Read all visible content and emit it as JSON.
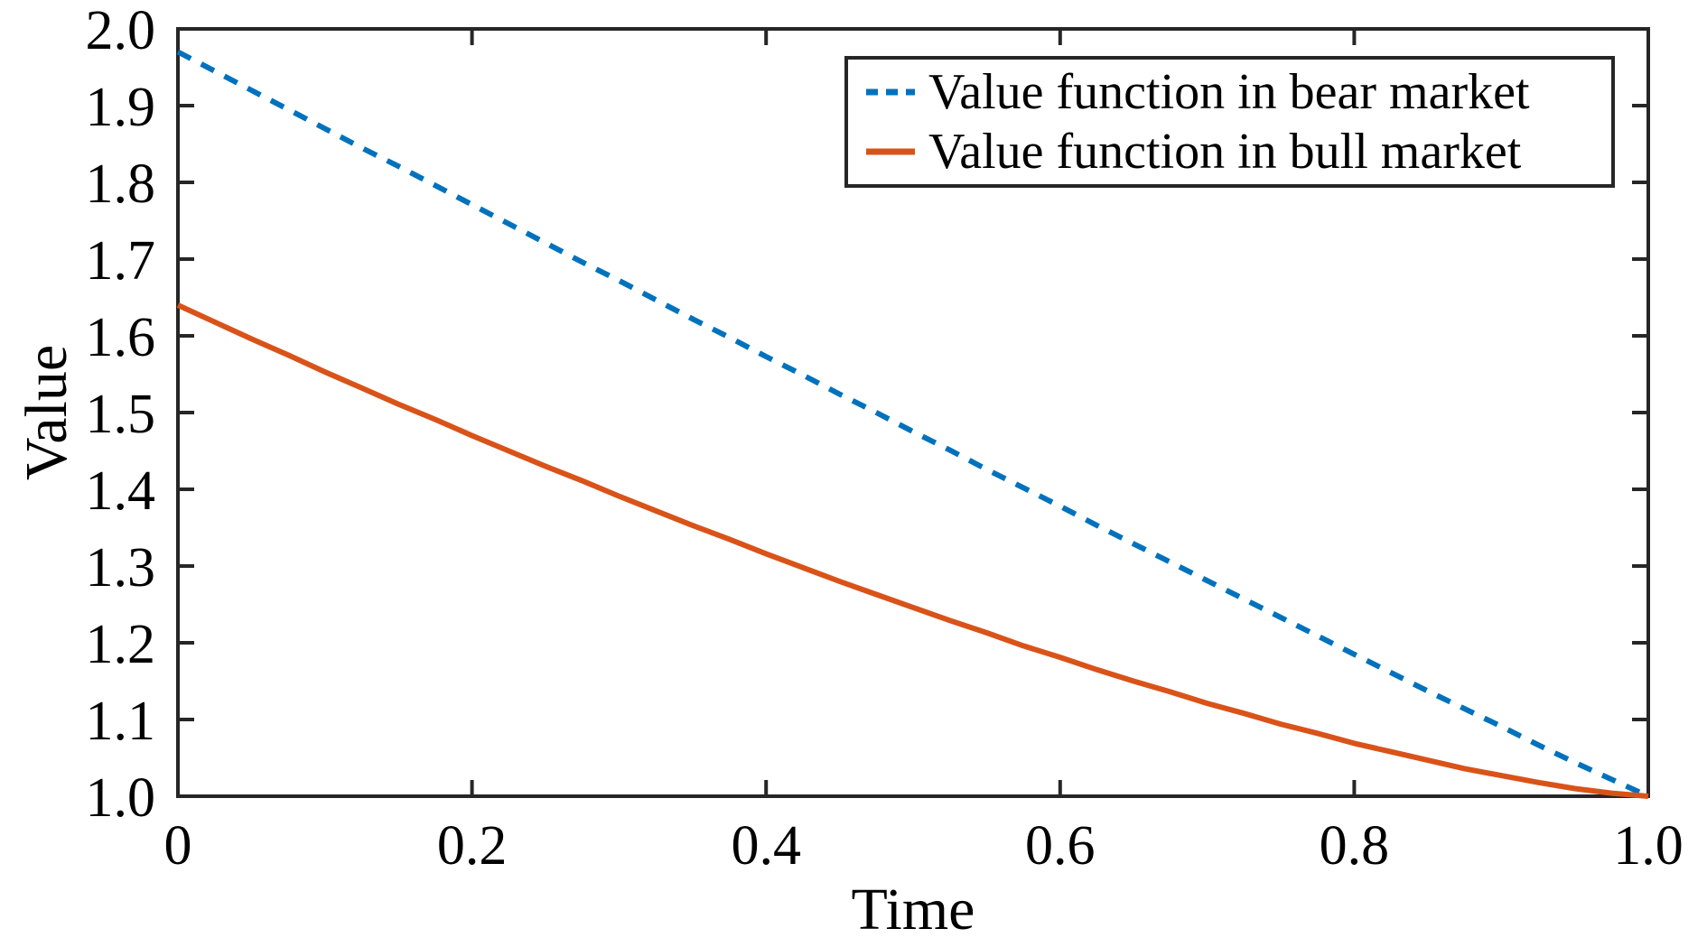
{
  "chart_data": {
    "type": "line",
    "title": "",
    "xlabel": "Time",
    "ylabel": "Value",
    "xlim": [
      0,
      1
    ],
    "ylim": [
      1.0,
      2.0
    ],
    "grid": false,
    "legend_position": "top-right",
    "x_ticks": [
      0,
      0.2,
      0.4,
      0.6,
      0.8,
      1.0
    ],
    "x_tick_labels": [
      "0",
      "0.2",
      "0.4",
      "0.6",
      "0.8",
      "1.0"
    ],
    "y_ticks": [
      1.0,
      1.1,
      1.2,
      1.3,
      1.4,
      1.5,
      1.6,
      1.7,
      1.8,
      1.9,
      2.0
    ],
    "y_tick_labels": [
      "1.0",
      "1.1",
      "1.2",
      "1.3",
      "1.4",
      "1.5",
      "1.6",
      "1.7",
      "1.8",
      "1.9",
      "2.0"
    ],
    "x": [
      0,
      0.025,
      0.05,
      0.075,
      0.1,
      0.125,
      0.15,
      0.175,
      0.2,
      0.225,
      0.25,
      0.275,
      0.3,
      0.325,
      0.35,
      0.375,
      0.4,
      0.425,
      0.45,
      0.475,
      0.5,
      0.525,
      0.55,
      0.575,
      0.6,
      0.625,
      0.65,
      0.675,
      0.7,
      0.725,
      0.75,
      0.775,
      0.8,
      0.825,
      0.85,
      0.875,
      0.9,
      0.925,
      0.95,
      0.975,
      1.0
    ],
    "series": [
      {
        "name": "Value function in bear market",
        "color": "#0072BD",
        "style": "dashed",
        "start_value": 1.97,
        "end_value": 1.0,
        "values": [
          1.97,
          1.945,
          1.92,
          1.895,
          1.87,
          1.845,
          1.821,
          1.796,
          1.771,
          1.746,
          1.721,
          1.696,
          1.672,
          1.647,
          1.622,
          1.598,
          1.573,
          1.549,
          1.524,
          1.5,
          1.475,
          1.451,
          1.426,
          1.402,
          1.378,
          1.353,
          1.329,
          1.305,
          1.281,
          1.257,
          1.233,
          1.209,
          1.185,
          1.161,
          1.137,
          1.114,
          1.091,
          1.067,
          1.044,
          1.022,
          1.0
        ]
      },
      {
        "name": "Value function in bull market",
        "color": "#D95319",
        "style": "solid",
        "start_value": 1.64,
        "end_value": 1.0,
        "values": [
          1.64,
          1.618,
          1.596,
          1.575,
          1.553,
          1.532,
          1.511,
          1.491,
          1.47,
          1.45,
          1.43,
          1.411,
          1.391,
          1.372,
          1.353,
          1.335,
          1.316,
          1.298,
          1.28,
          1.263,
          1.246,
          1.229,
          1.213,
          1.196,
          1.181,
          1.165,
          1.15,
          1.136,
          1.121,
          1.108,
          1.094,
          1.082,
          1.069,
          1.058,
          1.047,
          1.036,
          1.027,
          1.018,
          1.01,
          1.004,
          1.0
        ]
      }
    ]
  },
  "colors": {
    "axis": "#262626",
    "text": "#000000",
    "background": "#ffffff"
  }
}
